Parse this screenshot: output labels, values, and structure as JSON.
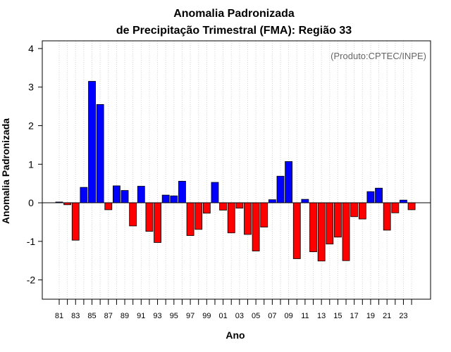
{
  "chart_data": {
    "type": "bar",
    "title_line1": "Anomalia Padronizada",
    "title_line2": "de Precipitação Trimestral (FMA): Região 33",
    "xlabel": "Ano",
    "ylabel": "Anomalia Padronizada",
    "annotation": "(Produto:CPTEC/INPE)",
    "ylim": [
      -2.5,
      4.2
    ],
    "yticks": [
      "-2",
      "-1",
      "0",
      "1",
      "2",
      "3",
      "4"
    ],
    "grid": "vertical-dotted",
    "positive_color": "#0000ff",
    "negative_color": "#ff0000",
    "categories": [
      "81",
      "82",
      "83",
      "84",
      "85",
      "86",
      "87",
      "88",
      "89",
      "90",
      "91",
      "92",
      "93",
      "94",
      "95",
      "96",
      "97",
      "98",
      "99",
      "00",
      "01",
      "02",
      "03",
      "04",
      "05",
      "06",
      "07",
      "08",
      "09",
      "10",
      "11",
      "12",
      "13",
      "14",
      "15",
      "16",
      "17",
      "18",
      "19",
      "20",
      "21",
      "22",
      "23",
      "24"
    ],
    "xtick_labels": [
      "81",
      "83",
      "85",
      "87",
      "89",
      "91",
      "93",
      "95",
      "97",
      "99",
      "01",
      "03",
      "05",
      "07",
      "09",
      "11",
      "13",
      "15",
      "17",
      "19",
      "21",
      "23"
    ],
    "values": [
      0.02,
      -0.05,
      -0.97,
      0.4,
      3.15,
      2.55,
      -0.18,
      0.44,
      0.32,
      -0.6,
      0.43,
      -0.74,
      -1.03,
      0.2,
      0.18,
      0.56,
      -0.85,
      -0.69,
      -0.27,
      0.53,
      -0.19,
      -0.78,
      -0.14,
      -0.82,
      -1.25,
      -0.63,
      0.08,
      0.69,
      1.07,
      -1.45,
      0.09,
      -1.27,
      -1.51,
      -1.07,
      -0.89,
      -1.5,
      -0.36,
      -0.42,
      0.29,
      0.38,
      -0.71,
      -0.26,
      0.07,
      -0.18
    ]
  }
}
